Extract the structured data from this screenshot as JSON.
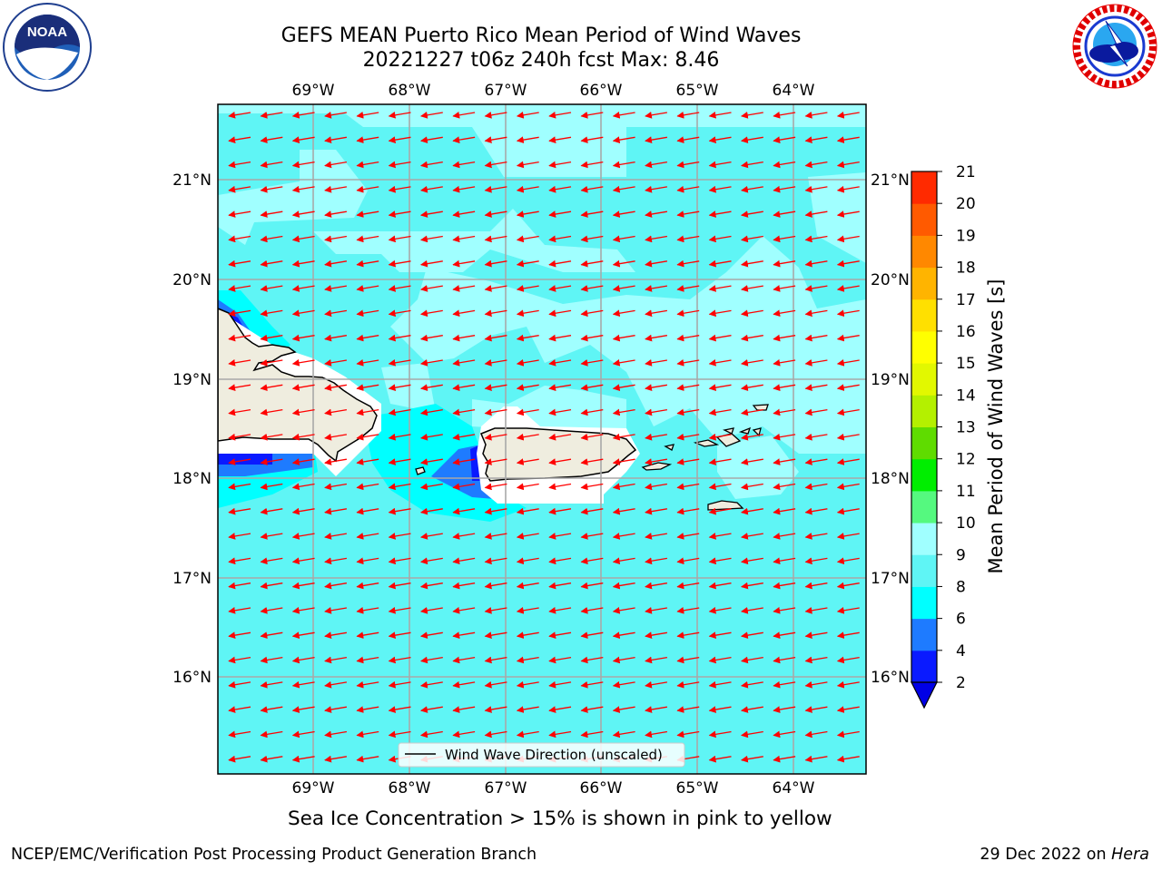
{
  "title_line1": "GEFS MEAN Puerto Rico Mean Period of Wind Waves",
  "title_line2": "20221227 t06z 240h fcst   Max: 8.46",
  "lon_labels": [
    "69°W",
    "68°W",
    "67°W",
    "66°W",
    "65°W",
    "64°W"
  ],
  "lat_labels": [
    "21°N",
    "20°N",
    "19°N",
    "18°N",
    "17°N",
    "16°N"
  ],
  "legend_label": "Wind Wave Direction (unscaled)",
  "colorbar": {
    "label": "Mean Period of Wind Waves [s]",
    "ticks": [
      "2",
      "4",
      "6",
      "8",
      "9",
      "10",
      "11",
      "12",
      "13",
      "14",
      "15",
      "16",
      "17",
      "18",
      "19",
      "20",
      "21"
    ],
    "colors": [
      "#0a1aff",
      "#1e7bff",
      "#00ffff",
      "#5ff5f5",
      "#a0ffff",
      "#55f97f",
      "#00ee00",
      "#5fdc00",
      "#b4f000",
      "#e2f800",
      "#ffff00",
      "#ffe000",
      "#ffb400",
      "#ff8800",
      "#ff5a00",
      "#ff2a00",
      "#ff0000"
    ],
    "under_color": "#0000e6"
  },
  "map_colors": {
    "ocean_6_8": "#5ff5f5",
    "ocean_8_9": "#a0ffff",
    "ocean_4_6": "#00ffff",
    "ocean_2_4": "#1e7bff",
    "ocean_lt2": "#0a1aff",
    "land": "#efeddf",
    "arrows": "#ff0000"
  },
  "region": {
    "lon_min": -70,
    "lon_max": -63.25,
    "lat_min": 15,
    "lat_max": 21.75
  },
  "note": "Sea Ice Concentration > 15% is shown in pink to yellow",
  "footer_left": "NCEP/EMC/Verification Post Processing Product Generation Branch",
  "footer_date": "29 Dec 2022 on ",
  "footer_host": "Hera"
}
